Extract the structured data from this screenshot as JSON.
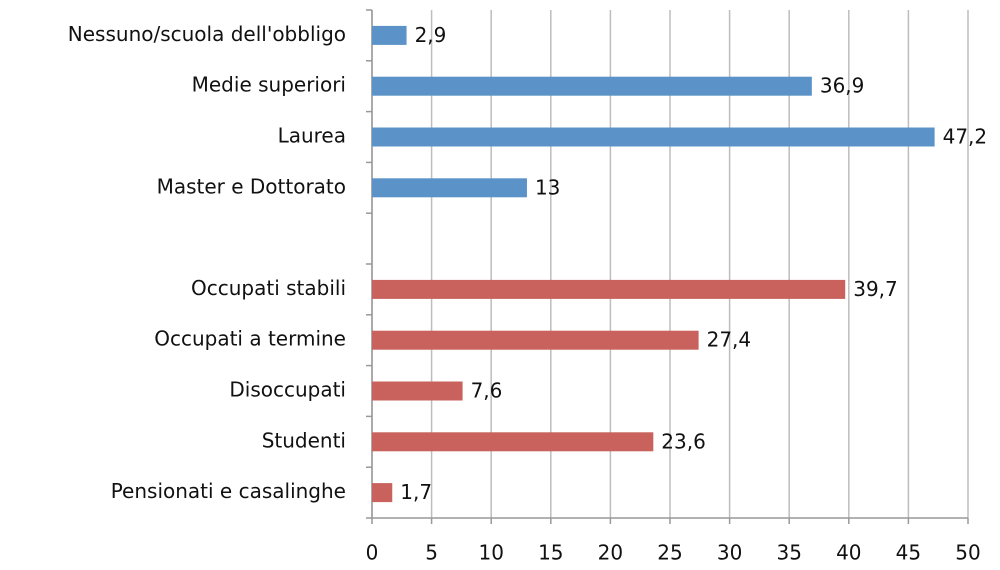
{
  "chart_data": {
    "type": "bar",
    "orientation": "horizontal",
    "categories": [
      "Nessuno/scuola dell'obbligo",
      "Medie superiori",
      "Laurea",
      "Master e Dottorato",
      null,
      "Occupati stabili",
      "Occupati a termine",
      "Disoccupati",
      "Studenti",
      "Pensionati e casalinghe"
    ],
    "values": [
      2.9,
      36.9,
      47.2,
      13,
      null,
      39.7,
      27.4,
      7.6,
      23.6,
      1.7
    ],
    "value_labels": [
      "2,9",
      "36,9",
      "47,2",
      "13",
      null,
      "39,7",
      "27,4",
      "7,6",
      "23,6",
      "1,7"
    ],
    "colors": [
      "#5b93c9",
      "#5b93c9",
      "#5b93c9",
      "#5b93c9",
      null,
      "#c9625c",
      "#c9625c",
      "#c9625c",
      "#c9625c",
      "#c9625c"
    ],
    "xlim": [
      0,
      50
    ],
    "xticks": [
      0,
      5,
      10,
      15,
      20,
      25,
      30,
      35,
      40,
      45,
      50
    ],
    "grid": true
  }
}
